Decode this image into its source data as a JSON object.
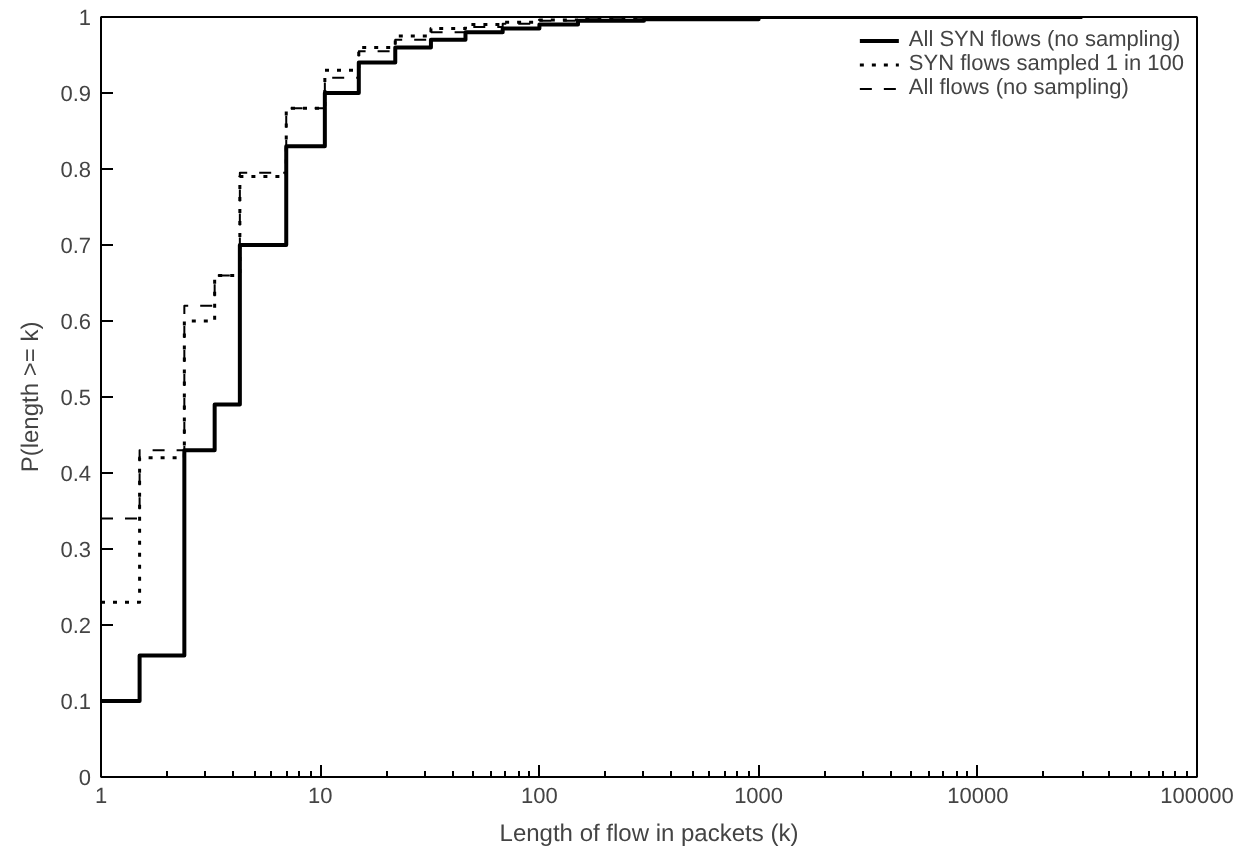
{
  "chart_data": {
    "type": "step",
    "xlabel": "Length of flow in packets (k)",
    "ylabel": "P(length >= k)",
    "log": "x",
    "xlim": [
      1,
      100000
    ],
    "xticks": [
      1,
      10,
      100,
      1000,
      10000,
      100000
    ],
    "ylim": [
      0,
      1
    ],
    "yticks": [
      0,
      0.1,
      0.2,
      0.3,
      0.4,
      0.5,
      0.6,
      0.7,
      0.8,
      0.9,
      1
    ],
    "grid": false,
    "legend": "top right",
    "marker": "none",
    "x": [
      1,
      1.5,
      2.4,
      3.3,
      4.3,
      7,
      10.5,
      15,
      22,
      32,
      46,
      68,
      100,
      150,
      300,
      1000,
      30000
    ],
    "series": [
      {
        "name": "All SYN flows (no sampling)",
        "color": "#000000",
        "line_style": "solid",
        "values": [
          0.1,
          0.16,
          0.43,
          0.49,
          0.7,
          0.83,
          0.9,
          0.94,
          0.96,
          0.97,
          0.98,
          0.985,
          0.99,
          0.995,
          0.997,
          1,
          1
        ]
      },
      {
        "name": "SYN flows sampled 1 in 100",
        "color": "#000000",
        "line_style": "dotted",
        "values": [
          0.23,
          0.42,
          0.6,
          0.66,
          0.79,
          0.88,
          0.93,
          0.96,
          0.975,
          0.985,
          0.99,
          0.993,
          0.996,
          0.998,
          0.999,
          1,
          1
        ]
      },
      {
        "name": "All flows (no sampling)",
        "color": "#000000",
        "line_style": "dashed",
        "values": [
          0.34,
          0.43,
          0.62,
          0.66,
          0.795,
          0.88,
          0.92,
          0.955,
          0.97,
          0.98,
          0.987,
          0.991,
          0.995,
          0.997,
          0.999,
          1,
          1
        ]
      }
    ]
  }
}
